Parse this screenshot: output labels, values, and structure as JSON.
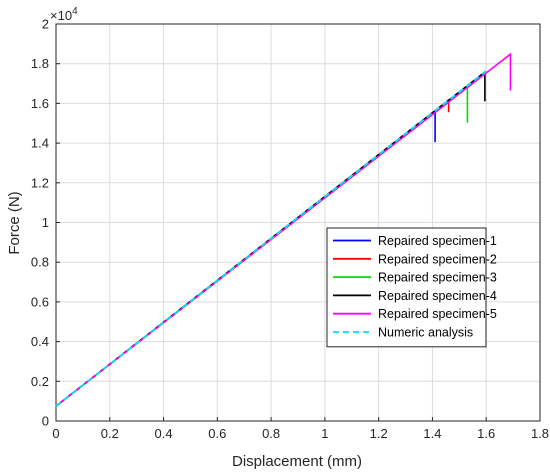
{
  "chart_data": {
    "type": "line",
    "xlabel": "Displacement (mm)",
    "ylabel": "Force (N)",
    "y_multiplier_label": "×10",
    "y_multiplier_exponent": "4",
    "xlim": [
      0,
      1.8
    ],
    "ylim": [
      0,
      2
    ],
    "xticks": [
      "0",
      "0.2",
      "0.4",
      "0.6",
      "0.8",
      "1",
      "1.2",
      "1.4",
      "1.6",
      "1.8"
    ],
    "yticks": [
      "0",
      "0.2",
      "0.4",
      "0.6",
      "0.8",
      "1",
      "1.2",
      "1.4",
      "1.6",
      "1.8",
      "2"
    ],
    "grid": true,
    "legend_placement": "bottom-right",
    "series": [
      {
        "name": "Repaired specimen-1",
        "color": "#0000ff",
        "dash": false,
        "x": [
          0,
          1.41,
          1.41
        ],
        "y": [
          0.075,
          1.563,
          1.405
        ]
      },
      {
        "name": "Repaired specimen-2",
        "color": "#ff0000",
        "dash": false,
        "x": [
          0,
          1.46,
          1.46
        ],
        "y": [
          0.075,
          1.616,
          1.555
        ]
      },
      {
        "name": "Repaired specimen-3",
        "color": "#00e000",
        "dash": false,
        "x": [
          0,
          1.53,
          1.53
        ],
        "y": [
          0.075,
          1.689,
          1.503
        ]
      },
      {
        "name": "Repaired specimen-4",
        "color": "#000000",
        "dash": false,
        "x": [
          0,
          1.595,
          1.595
        ],
        "y": [
          0.075,
          1.758,
          1.61
        ]
      },
      {
        "name": "Repaired specimen-5",
        "color": "#ff00ff",
        "dash": false,
        "x": [
          0,
          1.69,
          1.69
        ],
        "y": [
          0.075,
          1.848,
          1.665
        ]
      },
      {
        "name": "Numeric analysis",
        "color": "#00e5ee",
        "dash": true,
        "x": [
          0,
          1.6
        ],
        "y": [
          0.075,
          1.763
        ]
      }
    ]
  }
}
